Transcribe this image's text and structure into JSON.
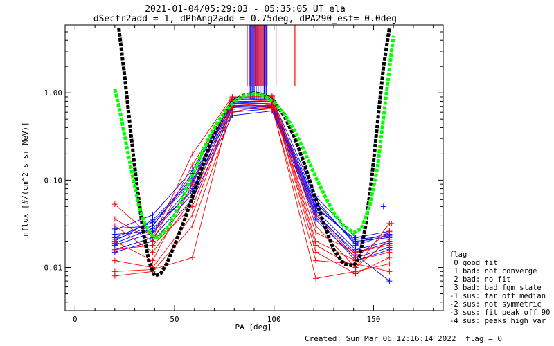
{
  "title_line1": "2021-01-04/05:29:03 - 05:35:05 UT ela",
  "title_line2": "dSectr2add = 1, dPhAng2add = 0.75deg, dPA290_est=   0.0deg",
  "footer_created": "Created: Sun Mar 06 12:16:14 2022",
  "footer_flag": "flag = 0",
  "legend": {
    "title": "flag",
    "items": [
      " 0 good fit",
      " 1 bad: not converge",
      " 2 bad: no fit",
      " 3 bad: bad fgm state",
      "-1 sus: far off median",
      "-2 sus: not symmetric",
      "-3 sus: fit peak off 90",
      "-4 sus: peaks high var"
    ]
  },
  "colors": {
    "blue": "#0000ff",
    "red": "#ff0000",
    "green": "#00ff00",
    "black": "#000000"
  },
  "chart_data": {
    "type": "line",
    "xlabel": "PA [deg]",
    "ylabel": "nflux [#/(cm^2 s sr MeV)]",
    "x_ticks": [
      0,
      50,
      100,
      150
    ],
    "y_ticks": [
      0.01,
      0.1,
      1.0
    ],
    "y_tick_labels": [
      "0.01",
      "0.10",
      "1.00"
    ],
    "xlim": [
      -5,
      185
    ],
    "ylim": [
      0.0032,
      6
    ],
    "y_scale": "log",
    "grid": false,
    "reference_curves": [
      {
        "color": "black",
        "x": [
          22,
          25,
          28,
          31,
          34,
          37,
          40,
          43,
          46,
          50,
          55,
          60,
          65,
          70,
          75,
          80,
          85,
          90,
          95,
          100,
          105,
          110,
          115,
          120,
          125,
          130,
          135,
          140,
          143,
          146,
          149,
          152,
          155,
          158
        ],
        "y": [
          5.5,
          1.5,
          0.35,
          0.09,
          0.028,
          0.012,
          0.008,
          0.0085,
          0.011,
          0.018,
          0.035,
          0.075,
          0.17,
          0.35,
          0.6,
          0.82,
          0.94,
          0.99,
          0.95,
          0.8,
          0.55,
          0.32,
          0.16,
          0.07,
          0.032,
          0.016,
          0.011,
          0.0105,
          0.013,
          0.03,
          0.1,
          0.45,
          2.0,
          5.5
        ]
      },
      {
        "color": "green",
        "x": [
          20,
          23,
          26,
          29,
          32,
          35,
          38,
          41,
          44,
          48,
          52,
          56,
          60,
          65,
          70,
          75,
          80,
          85,
          90,
          95,
          100,
          105,
          110,
          115,
          120,
          125,
          130,
          135,
          140,
          144,
          148,
          152,
          156,
          160
        ],
        "y": [
          1.1,
          0.55,
          0.24,
          0.11,
          0.052,
          0.032,
          0.024,
          0.022,
          0.024,
          0.032,
          0.05,
          0.08,
          0.13,
          0.24,
          0.4,
          0.6,
          0.8,
          0.93,
          0.98,
          0.93,
          0.78,
          0.58,
          0.38,
          0.22,
          0.12,
          0.07,
          0.042,
          0.03,
          0.025,
          0.028,
          0.05,
          0.14,
          0.8,
          4.5
        ]
      }
    ],
    "blue_sample_x": [
      20,
      39,
      59,
      79,
      99,
      121,
      141,
      158
    ],
    "blue_series_y": [
      [
        0.028,
        0.03,
        0.12,
        0.8,
        0.8,
        0.05,
        0.02,
        0.022
      ],
      [
        0.02,
        0.035,
        0.1,
        0.78,
        0.75,
        0.06,
        0.018,
        0.024
      ],
      [
        0.024,
        0.026,
        0.09,
        0.7,
        0.72,
        0.045,
        0.016,
        0.02
      ],
      [
        0.018,
        0.025,
        0.08,
        0.65,
        0.68,
        0.04,
        0.015,
        0.019
      ],
      [
        0.016,
        0.022,
        0.07,
        0.6,
        0.66,
        0.035,
        0.013,
        0.017
      ],
      [
        0.027,
        0.04,
        0.13,
        0.85,
        0.85,
        0.065,
        0.022,
        0.026
      ],
      [
        0.021,
        0.03,
        0.11,
        0.72,
        0.7,
        0.055,
        0.019,
        0.025
      ],
      [
        0.015,
        0.02,
        0.06,
        0.55,
        0.62,
        0.038,
        0.012,
        0.016
      ],
      [
        0.022,
        0.033,
        0.095,
        0.76,
        0.74,
        0.048,
        0.021,
        0.023
      ],
      [
        0.019,
        0.028,
        0.075,
        0.68,
        0.7,
        0.042,
        0.014,
        0.007
      ]
    ],
    "red_sample_x": [
      20,
      39,
      59,
      79,
      99,
      121,
      141,
      158
    ],
    "red_series_y": [
      [
        0.053,
        0.022,
        0.2,
        0.9,
        0.9,
        0.03,
        0.01,
        0.032
      ],
      [
        0.03,
        0.015,
        0.06,
        0.85,
        0.8,
        0.015,
        0.0085,
        0.013
      ],
      [
        0.012,
        0.01,
        0.04,
        0.75,
        0.7,
        0.0075,
        0.009,
        0.011
      ],
      [
        0.009,
        0.0095,
        0.013,
        0.82,
        0.85,
        0.02,
        0.012,
        0.015
      ],
      [
        0.016,
        0.018,
        0.05,
        0.7,
        0.66,
        0.012,
        0.011,
        0.009
      ],
      [
        0.008,
        0.009,
        0.03,
        0.6,
        0.75,
        0.025,
        0.015,
        0.018
      ],
      [
        0.02,
        0.012,
        0.09,
        0.88,
        0.92,
        0.04,
        0.013,
        0.026
      ],
      [
        0.036,
        0.02,
        0.15,
        0.8,
        0.78,
        0.018,
        0.01,
        0.021
      ]
    ],
    "vertical_lines": [
      {
        "color": "red",
        "x": [
          86.5,
          87.5,
          88.5,
          89.5,
          90.5,
          91.5,
          92.5,
          93.5,
          94.5,
          95.5,
          96.5,
          101,
          110.5
        ],
        "y_bottom": 1.2,
        "y_top": 6
      },
      {
        "color": "blue",
        "x": [
          88,
          89,
          90,
          91,
          92,
          93,
          94,
          95,
          96
        ],
        "y_bottom": 0.85,
        "y_top": 6
      }
    ],
    "outlier_points": [
      {
        "color": "blue",
        "x": 155,
        "y": 0.05
      },
      {
        "color": "red",
        "x": 159,
        "y": 0.032
      }
    ]
  }
}
